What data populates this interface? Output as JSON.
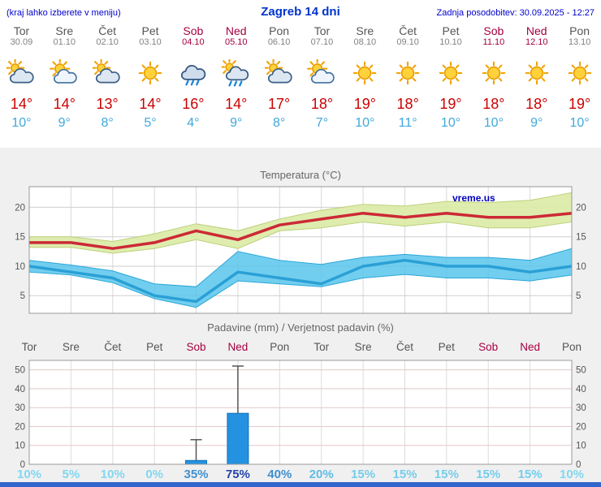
{
  "header": {
    "note": "(kraj lahko izberete v meniju)",
    "title": "Zagreb 14 dni",
    "updated": "Zadnja posodobitev: 30.09.2025 - 12:27"
  },
  "colors": {
    "header_blue": "#0000cc",
    "title_blue": "#0033cc",
    "weekend_red": "#a50040",
    "weekday_gray": "#555555",
    "tmax_red": "#cc0000",
    "tmin_blue": "#3fa8dc",
    "max_line": "#cc2936",
    "max_band_fill": "#dcecaa",
    "max_band_edge": "#bdd07a",
    "min_line": "#2aa0d5",
    "min_band_fill": "#59c6ec",
    "min_band_edge": "#2aa6d8",
    "bar_fill": "#2492e0",
    "bar_edge": "#1170bb",
    "whisker": "#555555",
    "panel_bg": "#f0f0f0",
    "footer_bar": "#3366cc",
    "watermark_blue": "#0000bb"
  },
  "forecast": {
    "days": [
      {
        "name": "Tor",
        "date": "30.09",
        "weekend": false,
        "icon": "mostly-cloudy",
        "tmax": "14°",
        "tmin": "10°"
      },
      {
        "name": "Sre",
        "date": "01.10",
        "weekend": false,
        "icon": "partly-cloudy",
        "tmax": "14°",
        "tmin": "9°"
      },
      {
        "name": "Čet",
        "date": "02.10",
        "weekend": false,
        "icon": "mostly-cloudy",
        "tmax": "13°",
        "tmin": "8°"
      },
      {
        "name": "Pet",
        "date": "03.10",
        "weekend": false,
        "icon": "sunny",
        "tmax": "14°",
        "tmin": "5°"
      },
      {
        "name": "Sob",
        "date": "04.10",
        "weekend": true,
        "icon": "rain",
        "tmax": "16°",
        "tmin": "4°"
      },
      {
        "name": "Ned",
        "date": "05.10",
        "weekend": true,
        "icon": "showers",
        "tmax": "14°",
        "tmin": "9°"
      },
      {
        "name": "Pon",
        "date": "06.10",
        "weekend": false,
        "icon": "mostly-cloudy",
        "tmax": "17°",
        "tmin": "8°"
      },
      {
        "name": "Tor",
        "date": "07.10",
        "weekend": false,
        "icon": "partly-cloudy",
        "tmax": "18°",
        "tmin": "7°"
      },
      {
        "name": "Sre",
        "date": "08.10",
        "weekend": false,
        "icon": "sunny",
        "tmax": "19°",
        "tmin": "10°"
      },
      {
        "name": "Čet",
        "date": "09.10",
        "weekend": false,
        "icon": "sunny",
        "tmax": "18°",
        "tmin": "11°"
      },
      {
        "name": "Pet",
        "date": "10.10",
        "weekend": false,
        "icon": "sunny",
        "tmax": "19°",
        "tmin": "10°"
      },
      {
        "name": "Sob",
        "date": "11.10",
        "weekend": true,
        "icon": "sunny",
        "tmax": "18°",
        "tmin": "10°"
      },
      {
        "name": "Ned",
        "date": "12.10",
        "weekend": true,
        "icon": "sunny",
        "tmax": "18°",
        "tmin": "9°"
      },
      {
        "name": "Pon",
        "date": "13.10",
        "weekend": false,
        "icon": "sunny",
        "tmax": "19°",
        "tmin": "10°"
      }
    ]
  },
  "chart_data": [
    {
      "type": "line",
      "title": "Temperatura (°C)",
      "categories": [
        "Tor",
        "Sre",
        "Čet",
        "Pet",
        "Sob",
        "Ned",
        "Pon",
        "Tor",
        "Sre",
        "Čet",
        "Pet",
        "Sob",
        "Ned",
        "Pon"
      ],
      "ylim": [
        2,
        23.5
      ],
      "yticks": [
        5,
        10,
        15,
        20
      ],
      "grid": true,
      "legend": "none",
      "watermark": "vreme.us",
      "series": [
        {
          "name": "tmax",
          "values": [
            14,
            14,
            13,
            14,
            16,
            14.5,
            17,
            18,
            19,
            18.3,
            19,
            18.3,
            18.3,
            19
          ]
        },
        {
          "name": "tmax_upper",
          "values": [
            15,
            15,
            14.2,
            15.5,
            17.2,
            16,
            18,
            19.5,
            20.5,
            20.2,
            21,
            20.8,
            21.2,
            22.5
          ]
        },
        {
          "name": "tmax_lower",
          "values": [
            13.2,
            13.2,
            12.2,
            13,
            14.5,
            13,
            16,
            16.5,
            17.5,
            16.8,
            17.5,
            16.5,
            16.5,
            17.5
          ]
        },
        {
          "name": "tmin",
          "values": [
            10,
            9,
            8,
            5,
            4,
            9,
            8,
            7,
            10,
            11,
            10,
            10,
            9,
            10
          ]
        },
        {
          "name": "tmin_upper",
          "values": [
            11,
            10.2,
            9.2,
            7,
            6.5,
            12.5,
            11,
            10.3,
            11.5,
            12,
            11.5,
            11.5,
            11,
            13
          ]
        },
        {
          "name": "tmin_lower",
          "values": [
            9,
            8.5,
            7.2,
            4.5,
            3,
            7.5,
            7,
            6.5,
            8,
            8.6,
            8,
            8,
            7.5,
            8.5
          ]
        }
      ]
    },
    {
      "type": "bar",
      "title": "Padavine (mm) / Verjetnost padavin (%)",
      "categories": [
        "Tor",
        "Sre",
        "Čet",
        "Pet",
        "Sob",
        "Ned",
        "Pon",
        "Tor",
        "Sre",
        "Čet",
        "Pet",
        "Sob",
        "Ned",
        "Pon"
      ],
      "weekend": [
        false,
        false,
        false,
        false,
        true,
        true,
        false,
        false,
        false,
        false,
        false,
        true,
        true,
        false
      ],
      "ylim": [
        0,
        55
      ],
      "yticks": [
        0,
        10,
        20,
        30,
        40,
        50
      ],
      "values": [
        0,
        0,
        0,
        0,
        2,
        27,
        0,
        0,
        0,
        0,
        0,
        0,
        0,
        0
      ],
      "range_max": [
        0,
        0,
        0,
        0,
        13,
        52,
        0,
        0,
        0,
        0,
        0,
        0,
        0,
        0
      ],
      "probabilities": [
        "10%",
        "5%",
        "10%",
        "0%",
        "35%",
        "75%",
        "40%",
        "20%",
        "15%",
        "15%",
        "15%",
        "15%",
        "15%",
        "10%"
      ],
      "prob_colors": [
        "#82d7ef",
        "#82d7ef",
        "#82d7ef",
        "#82d7ef",
        "#3f8fcf",
        "#2244aa",
        "#3f8fcf",
        "#5fbde6",
        "#74cdec",
        "#74cdec",
        "#74cdec",
        "#74cdec",
        "#74cdec",
        "#82d7ef"
      ]
    }
  ]
}
